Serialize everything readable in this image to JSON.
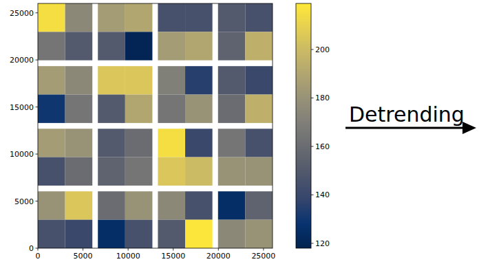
{
  "chart_data": {
    "type": "heatmap",
    "annotation": "Detrending",
    "xlim": [
      0,
      26000
    ],
    "ylim": [
      0,
      26000
    ],
    "xticks": [
      0,
      5000,
      10000,
      15000,
      20000,
      25000
    ],
    "yticks": [
      0,
      5000,
      10000,
      15000,
      20000,
      25000
    ],
    "colorbar": {
      "range": [
        118,
        219
      ],
      "ticks": [
        120,
        140,
        160,
        180,
        200
      ]
    },
    "cells": [
      {
        "x": [
          0,
          3020
        ],
        "y": [
          22980,
          26000
        ],
        "value": 215
      },
      {
        "x": [
          3020,
          6040
        ],
        "y": [
          22980,
          26000
        ],
        "value": 175
      },
      {
        "x": [
          6650,
          9670
        ],
        "y": [
          22980,
          26000
        ],
        "value": 185
      },
      {
        "x": [
          9670,
          12690
        ],
        "y": [
          22980,
          26000
        ],
        "value": 190
      },
      {
        "x": [
          13300,
          16320
        ],
        "y": [
          22980,
          26000
        ],
        "value": 145
      },
      {
        "x": [
          16320,
          19340
        ],
        "y": [
          22980,
          26000
        ],
        "value": 145
      },
      {
        "x": [
          19960,
          22980
        ],
        "y": [
          22980,
          26000
        ],
        "value": 150
      },
      {
        "x": [
          22980,
          26000
        ],
        "y": [
          22980,
          26000
        ],
        "value": 145
      },
      {
        "x": [
          0,
          3020
        ],
        "y": [
          19960,
          22980
        ],
        "value": 165
      },
      {
        "x": [
          3020,
          6040
        ],
        "y": [
          19960,
          22980
        ],
        "value": 150
      },
      {
        "x": [
          6650,
          9670
        ],
        "y": [
          19960,
          22980
        ],
        "value": 150
      },
      {
        "x": [
          9670,
          12690
        ],
        "y": [
          19960,
          22980
        ],
        "value": 120
      },
      {
        "x": [
          13300,
          16320
        ],
        "y": [
          19960,
          22980
        ],
        "value": 185
      },
      {
        "x": [
          16320,
          19340
        ],
        "y": [
          19960,
          22980
        ],
        "value": 190
      },
      {
        "x": [
          19960,
          22980
        ],
        "y": [
          19960,
          22980
        ],
        "value": 155
      },
      {
        "x": [
          22980,
          26000
        ],
        "y": [
          19960,
          22980
        ],
        "value": 195
      },
      {
        "x": [
          0,
          3020
        ],
        "y": [
          16320,
          19340
        ],
        "value": 185
      },
      {
        "x": [
          3020,
          6040
        ],
        "y": [
          16320,
          19340
        ],
        "value": 175
      },
      {
        "x": [
          6650,
          9670
        ],
        "y": [
          16320,
          19340
        ],
        "value": 205
      },
      {
        "x": [
          9670,
          12690
        ],
        "y": [
          16320,
          19340
        ],
        "value": 205
      },
      {
        "x": [
          13300,
          16320
        ],
        "y": [
          16320,
          19340
        ],
        "value": 170
      },
      {
        "x": [
          16320,
          19340
        ],
        "y": [
          16320,
          19340
        ],
        "value": 135
      },
      {
        "x": [
          19960,
          22980
        ],
        "y": [
          16320,
          19340
        ],
        "value": 150
      },
      {
        "x": [
          22980,
          26000
        ],
        "y": [
          16320,
          19340
        ],
        "value": 140
      },
      {
        "x": [
          0,
          3020
        ],
        "y": [
          13300,
          16320
        ],
        "value": 130
      },
      {
        "x": [
          3020,
          6040
        ],
        "y": [
          13300,
          16320
        ],
        "value": 165
      },
      {
        "x": [
          6650,
          9670
        ],
        "y": [
          13300,
          16320
        ],
        "value": 150
      },
      {
        "x": [
          9670,
          12690
        ],
        "y": [
          13300,
          16320
        ],
        "value": 190
      },
      {
        "x": [
          13300,
          16320
        ],
        "y": [
          13300,
          16320
        ],
        "value": 165
      },
      {
        "x": [
          16320,
          19340
        ],
        "y": [
          13300,
          16320
        ],
        "value": 180
      },
      {
        "x": [
          19960,
          22980
        ],
        "y": [
          13300,
          16320
        ],
        "value": 160
      },
      {
        "x": [
          22980,
          26000
        ],
        "y": [
          13300,
          16320
        ],
        "value": 195
      },
      {
        "x": [
          0,
          3020
        ],
        "y": [
          9670,
          12690
        ],
        "value": 185
      },
      {
        "x": [
          3020,
          6040
        ],
        "y": [
          9670,
          12690
        ],
        "value": 180
      },
      {
        "x": [
          6650,
          9670
        ],
        "y": [
          9670,
          12690
        ],
        "value": 150
      },
      {
        "x": [
          9670,
          12690
        ],
        "y": [
          9670,
          12690
        ],
        "value": 160
      },
      {
        "x": [
          13300,
          16320
        ],
        "y": [
          9670,
          12690
        ],
        "value": 215
      },
      {
        "x": [
          16320,
          19340
        ],
        "y": [
          9670,
          12690
        ],
        "value": 140
      },
      {
        "x": [
          19960,
          22980
        ],
        "y": [
          9670,
          12690
        ],
        "value": 165
      },
      {
        "x": [
          22980,
          26000
        ],
        "y": [
          9670,
          12690
        ],
        "value": 145
      },
      {
        "x": [
          0,
          3020
        ],
        "y": [
          6650,
          9670
        ],
        "value": 145
      },
      {
        "x": [
          3020,
          6040
        ],
        "y": [
          6650,
          9670
        ],
        "value": 160
      },
      {
        "x": [
          6650,
          9670
        ],
        "y": [
          6650,
          9670
        ],
        "value": 155
      },
      {
        "x": [
          9670,
          12690
        ],
        "y": [
          6650,
          9670
        ],
        "value": 165
      },
      {
        "x": [
          13300,
          16320
        ],
        "y": [
          6650,
          9670
        ],
        "value": 205
      },
      {
        "x": [
          16320,
          19340
        ],
        "y": [
          6650,
          9670
        ],
        "value": 200
      },
      {
        "x": [
          19960,
          22980
        ],
        "y": [
          6650,
          9670
        ],
        "value": 180
      },
      {
        "x": [
          22980,
          26000
        ],
        "y": [
          6650,
          9670
        ],
        "value": 180
      },
      {
        "x": [
          0,
          3020
        ],
        "y": [
          3020,
          6040
        ],
        "value": 180
      },
      {
        "x": [
          3020,
          6040
        ],
        "y": [
          3020,
          6040
        ],
        "value": 205
      },
      {
        "x": [
          6650,
          9670
        ],
        "y": [
          3020,
          6040
        ],
        "value": 160
      },
      {
        "x": [
          9670,
          12690
        ],
        "y": [
          3020,
          6040
        ],
        "value": 180
      },
      {
        "x": [
          13300,
          16320
        ],
        "y": [
          3020,
          6040
        ],
        "value": 175
      },
      {
        "x": [
          16320,
          19340
        ],
        "y": [
          3020,
          6040
        ],
        "value": 145
      },
      {
        "x": [
          19960,
          22980
        ],
        "y": [
          3020,
          6040
        ],
        "value": 125
      },
      {
        "x": [
          22980,
          26000
        ],
        "y": [
          3020,
          6040
        ],
        "value": 155
      },
      {
        "x": [
          0,
          3020
        ],
        "y": [
          0,
          3020
        ],
        "value": 145
      },
      {
        "x": [
          3020,
          6040
        ],
        "y": [
          0,
          3020
        ],
        "value": 140
      },
      {
        "x": [
          6650,
          9670
        ],
        "y": [
          0,
          3020
        ],
        "value": 125
      },
      {
        "x": [
          9670,
          12690
        ],
        "y": [
          0,
          3020
        ],
        "value": 145
      },
      {
        "x": [
          13300,
          16320
        ],
        "y": [
          0,
          3020
        ],
        "value": 150
      },
      {
        "x": [
          16320,
          19340
        ],
        "y": [
          0,
          3020
        ],
        "value": 218
      },
      {
        "x": [
          19960,
          22980
        ],
        "y": [
          0,
          3020
        ],
        "value": 175
      },
      {
        "x": [
          22980,
          26000
        ],
        "y": [
          0,
          3020
        ],
        "value": 180
      }
    ]
  }
}
